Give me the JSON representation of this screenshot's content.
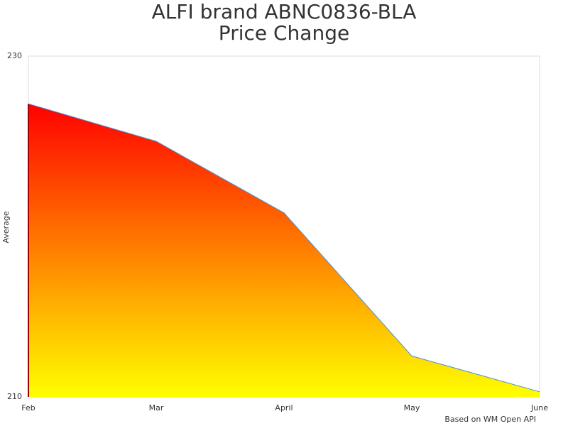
{
  "chart_data": {
    "type": "area",
    "title": [
      "ALFI brand ABNC0836-BLA",
      "Price Change"
    ],
    "y_label": "Average",
    "credit": "Based on WM Open API",
    "categories": [
      "Feb",
      "Mar",
      "April",
      "May",
      "June"
    ],
    "values": [
      227.2,
      225.0,
      220.8,
      212.4,
      210.3
    ],
    "ylim": [
      210,
      230
    ],
    "yticks": [
      210,
      230
    ],
    "gradient": [
      "#ff0000",
      "#ffff00"
    ],
    "line_color": "#4a90d9"
  }
}
